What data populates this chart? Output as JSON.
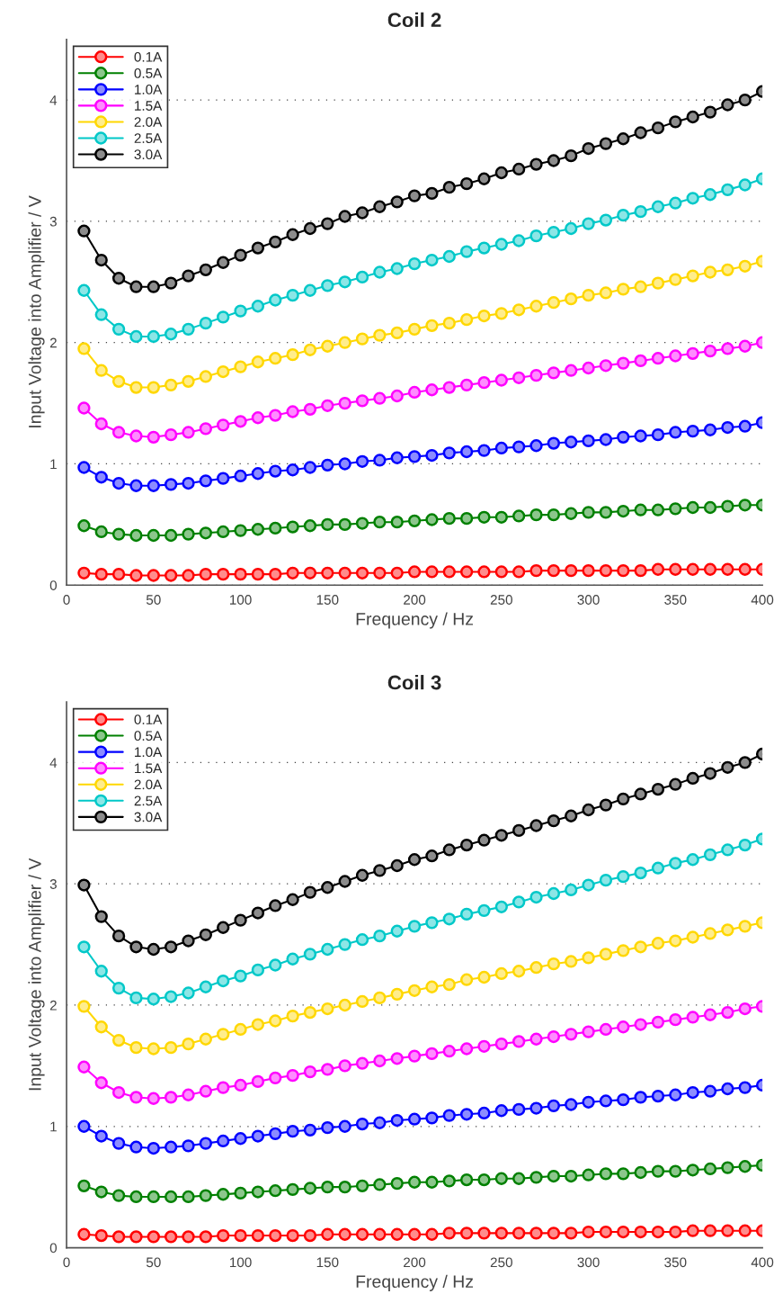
{
  "chart_data": [
    {
      "type": "line",
      "title": "Coil 2",
      "xlabel": "Frequency / Hz",
      "ylabel": "Input Voltage into Amplifier / V",
      "x": [
        10,
        20,
        30,
        40,
        50,
        60,
        70,
        80,
        90,
        100,
        110,
        120,
        130,
        140,
        150,
        160,
        170,
        180,
        190,
        200,
        210,
        220,
        230,
        240,
        250,
        260,
        270,
        280,
        290,
        300,
        310,
        320,
        330,
        340,
        350,
        360,
        370,
        380,
        390,
        400
      ],
      "xlim": [
        0,
        400
      ],
      "xticks": [
        0,
        50,
        100,
        150,
        200,
        250,
        300,
        350,
        400
      ],
      "ylim": [
        0,
        4.5
      ],
      "yticks": [
        0,
        1,
        2,
        3,
        4
      ],
      "grid": "y",
      "legend": "top left",
      "marker": "circle",
      "line_style": "solid",
      "series": [
        {
          "name": "0.1A",
          "color": "#ff0000",
          "values": [
            0.1,
            0.09,
            0.09,
            0.08,
            0.08,
            0.08,
            0.08,
            0.09,
            0.09,
            0.09,
            0.09,
            0.09,
            0.1,
            0.1,
            0.1,
            0.1,
            0.1,
            0.1,
            0.1,
            0.11,
            0.11,
            0.11,
            0.11,
            0.11,
            0.11,
            0.11,
            0.12,
            0.12,
            0.12,
            0.12,
            0.12,
            0.12,
            0.12,
            0.13,
            0.13,
            0.13,
            0.13,
            0.13,
            0.13,
            0.13
          ]
        },
        {
          "name": "0.5A",
          "color": "#008000",
          "values": [
            0.49,
            0.44,
            0.42,
            0.41,
            0.41,
            0.41,
            0.42,
            0.43,
            0.44,
            0.45,
            0.46,
            0.47,
            0.48,
            0.49,
            0.5,
            0.5,
            0.51,
            0.52,
            0.52,
            0.53,
            0.54,
            0.55,
            0.55,
            0.56,
            0.56,
            0.57,
            0.58,
            0.58,
            0.59,
            0.6,
            0.6,
            0.61,
            0.62,
            0.62,
            0.63,
            0.64,
            0.64,
            0.65,
            0.66,
            0.66
          ]
        },
        {
          "name": "1.0A",
          "color": "#0000ff",
          "values": [
            0.97,
            0.89,
            0.84,
            0.82,
            0.82,
            0.83,
            0.84,
            0.86,
            0.88,
            0.9,
            0.92,
            0.94,
            0.95,
            0.97,
            0.99,
            1.0,
            1.02,
            1.03,
            1.05,
            1.06,
            1.07,
            1.09,
            1.1,
            1.11,
            1.13,
            1.14,
            1.15,
            1.17,
            1.18,
            1.19,
            1.2,
            1.22,
            1.23,
            1.24,
            1.26,
            1.27,
            1.28,
            1.3,
            1.31,
            1.34
          ]
        },
        {
          "name": "1.5A",
          "color": "#ff00ff",
          "values": [
            1.46,
            1.33,
            1.26,
            1.23,
            1.22,
            1.24,
            1.26,
            1.29,
            1.32,
            1.35,
            1.38,
            1.4,
            1.43,
            1.45,
            1.48,
            1.5,
            1.52,
            1.54,
            1.56,
            1.59,
            1.61,
            1.63,
            1.65,
            1.67,
            1.69,
            1.71,
            1.73,
            1.75,
            1.77,
            1.79,
            1.81,
            1.83,
            1.85,
            1.87,
            1.89,
            1.91,
            1.93,
            1.95,
            1.97,
            2.0
          ]
        },
        {
          "name": "2.0A",
          "color": "#ffd700",
          "values": [
            1.95,
            1.77,
            1.68,
            1.63,
            1.63,
            1.65,
            1.68,
            1.72,
            1.76,
            1.8,
            1.84,
            1.87,
            1.9,
            1.94,
            1.97,
            2.0,
            2.03,
            2.06,
            2.08,
            2.11,
            2.14,
            2.16,
            2.19,
            2.22,
            2.24,
            2.27,
            2.3,
            2.33,
            2.36,
            2.39,
            2.41,
            2.44,
            2.46,
            2.49,
            2.52,
            2.55,
            2.58,
            2.6,
            2.63,
            2.67
          ]
        },
        {
          "name": "2.5A",
          "color": "#00c8c8",
          "values": [
            2.43,
            2.23,
            2.11,
            2.05,
            2.05,
            2.07,
            2.11,
            2.16,
            2.21,
            2.26,
            2.3,
            2.35,
            2.39,
            2.43,
            2.47,
            2.5,
            2.54,
            2.58,
            2.61,
            2.65,
            2.68,
            2.71,
            2.75,
            2.78,
            2.81,
            2.84,
            2.88,
            2.91,
            2.94,
            2.98,
            3.01,
            3.05,
            3.08,
            3.12,
            3.15,
            3.19,
            3.22,
            3.26,
            3.3,
            3.35
          ]
        },
        {
          "name": "3.0A",
          "color": "#000000",
          "values": [
            2.92,
            2.68,
            2.53,
            2.46,
            2.46,
            2.49,
            2.55,
            2.6,
            2.66,
            2.72,
            2.78,
            2.83,
            2.89,
            2.94,
            2.98,
            3.04,
            3.07,
            3.12,
            3.16,
            3.21,
            3.23,
            3.28,
            3.31,
            3.35,
            3.4,
            3.43,
            3.47,
            3.5,
            3.54,
            3.6,
            3.64,
            3.68,
            3.73,
            3.77,
            3.82,
            3.86,
            3.9,
            3.96,
            4.0,
            4.07
          ]
        }
      ]
    },
    {
      "type": "line",
      "title": "Coil 3",
      "xlabel": "Frequency / Hz",
      "ylabel": "Input Voltage into Amplifier / V",
      "x": [
        10,
        20,
        30,
        40,
        50,
        60,
        70,
        80,
        90,
        100,
        110,
        120,
        130,
        140,
        150,
        160,
        170,
        180,
        190,
        200,
        210,
        220,
        230,
        240,
        250,
        260,
        270,
        280,
        290,
        300,
        310,
        320,
        330,
        340,
        350,
        360,
        370,
        380,
        390,
        400
      ],
      "xlim": [
        0,
        400
      ],
      "xticks": [
        0,
        50,
        100,
        150,
        200,
        250,
        300,
        350,
        400
      ],
      "ylim": [
        0,
        4.5
      ],
      "yticks": [
        0,
        1,
        2,
        3,
        4
      ],
      "grid": "y",
      "legend": "top left",
      "marker": "circle",
      "line_style": "solid",
      "series": [
        {
          "name": "0.1A",
          "color": "#ff0000",
          "values": [
            0.11,
            0.1,
            0.09,
            0.09,
            0.09,
            0.09,
            0.09,
            0.09,
            0.1,
            0.1,
            0.1,
            0.1,
            0.1,
            0.1,
            0.11,
            0.11,
            0.11,
            0.11,
            0.11,
            0.11,
            0.11,
            0.12,
            0.12,
            0.12,
            0.12,
            0.12,
            0.12,
            0.12,
            0.12,
            0.13,
            0.13,
            0.13,
            0.13,
            0.13,
            0.13,
            0.14,
            0.14,
            0.14,
            0.14,
            0.14
          ]
        },
        {
          "name": "0.5A",
          "color": "#008000",
          "values": [
            0.51,
            0.46,
            0.43,
            0.42,
            0.42,
            0.42,
            0.42,
            0.43,
            0.44,
            0.45,
            0.46,
            0.47,
            0.48,
            0.49,
            0.5,
            0.5,
            0.51,
            0.52,
            0.53,
            0.54,
            0.54,
            0.55,
            0.56,
            0.56,
            0.57,
            0.57,
            0.58,
            0.59,
            0.59,
            0.6,
            0.61,
            0.61,
            0.62,
            0.63,
            0.63,
            0.64,
            0.65,
            0.66,
            0.67,
            0.68
          ]
        },
        {
          "name": "1.0A",
          "color": "#0000ff",
          "values": [
            1.0,
            0.92,
            0.86,
            0.83,
            0.82,
            0.83,
            0.84,
            0.86,
            0.88,
            0.9,
            0.92,
            0.94,
            0.96,
            0.97,
            0.99,
            1.0,
            1.02,
            1.03,
            1.05,
            1.06,
            1.07,
            1.09,
            1.1,
            1.11,
            1.13,
            1.14,
            1.15,
            1.17,
            1.18,
            1.2,
            1.21,
            1.22,
            1.24,
            1.25,
            1.26,
            1.28,
            1.29,
            1.31,
            1.32,
            1.34
          ]
        },
        {
          "name": "1.5A",
          "color": "#ff00ff",
          "values": [
            1.49,
            1.36,
            1.28,
            1.24,
            1.23,
            1.24,
            1.26,
            1.29,
            1.32,
            1.34,
            1.37,
            1.4,
            1.42,
            1.45,
            1.47,
            1.5,
            1.52,
            1.54,
            1.56,
            1.58,
            1.6,
            1.62,
            1.64,
            1.66,
            1.68,
            1.7,
            1.72,
            1.74,
            1.76,
            1.78,
            1.8,
            1.82,
            1.84,
            1.86,
            1.88,
            1.9,
            1.92,
            1.94,
            1.97,
            1.99
          ]
        },
        {
          "name": "2.0A",
          "color": "#ffd700",
          "values": [
            1.99,
            1.82,
            1.71,
            1.65,
            1.64,
            1.65,
            1.68,
            1.72,
            1.76,
            1.8,
            1.84,
            1.87,
            1.91,
            1.94,
            1.97,
            2.0,
            2.03,
            2.06,
            2.09,
            2.12,
            2.15,
            2.17,
            2.21,
            2.23,
            2.26,
            2.28,
            2.31,
            2.34,
            2.36,
            2.39,
            2.42,
            2.45,
            2.48,
            2.51,
            2.53,
            2.56,
            2.59,
            2.62,
            2.65,
            2.68
          ]
        },
        {
          "name": "2.5A",
          "color": "#00c8c8",
          "values": [
            2.48,
            2.28,
            2.14,
            2.06,
            2.05,
            2.07,
            2.1,
            2.15,
            2.2,
            2.24,
            2.29,
            2.33,
            2.38,
            2.42,
            2.46,
            2.5,
            2.54,
            2.57,
            2.61,
            2.65,
            2.68,
            2.71,
            2.75,
            2.78,
            2.81,
            2.85,
            2.89,
            2.92,
            2.95,
            2.99,
            3.03,
            3.06,
            3.09,
            3.13,
            3.17,
            3.2,
            3.24,
            3.28,
            3.32,
            3.37
          ]
        },
        {
          "name": "3.0A",
          "color": "#000000",
          "values": [
            2.99,
            2.73,
            2.57,
            2.48,
            2.46,
            2.48,
            2.53,
            2.58,
            2.64,
            2.7,
            2.76,
            2.82,
            2.87,
            2.93,
            2.97,
            3.02,
            3.07,
            3.11,
            3.15,
            3.2,
            3.23,
            3.28,
            3.32,
            3.36,
            3.4,
            3.44,
            3.48,
            3.52,
            3.56,
            3.61,
            3.65,
            3.7,
            3.74,
            3.78,
            3.82,
            3.87,
            3.91,
            3.96,
            4.0,
            4.07
          ]
        }
      ]
    }
  ]
}
